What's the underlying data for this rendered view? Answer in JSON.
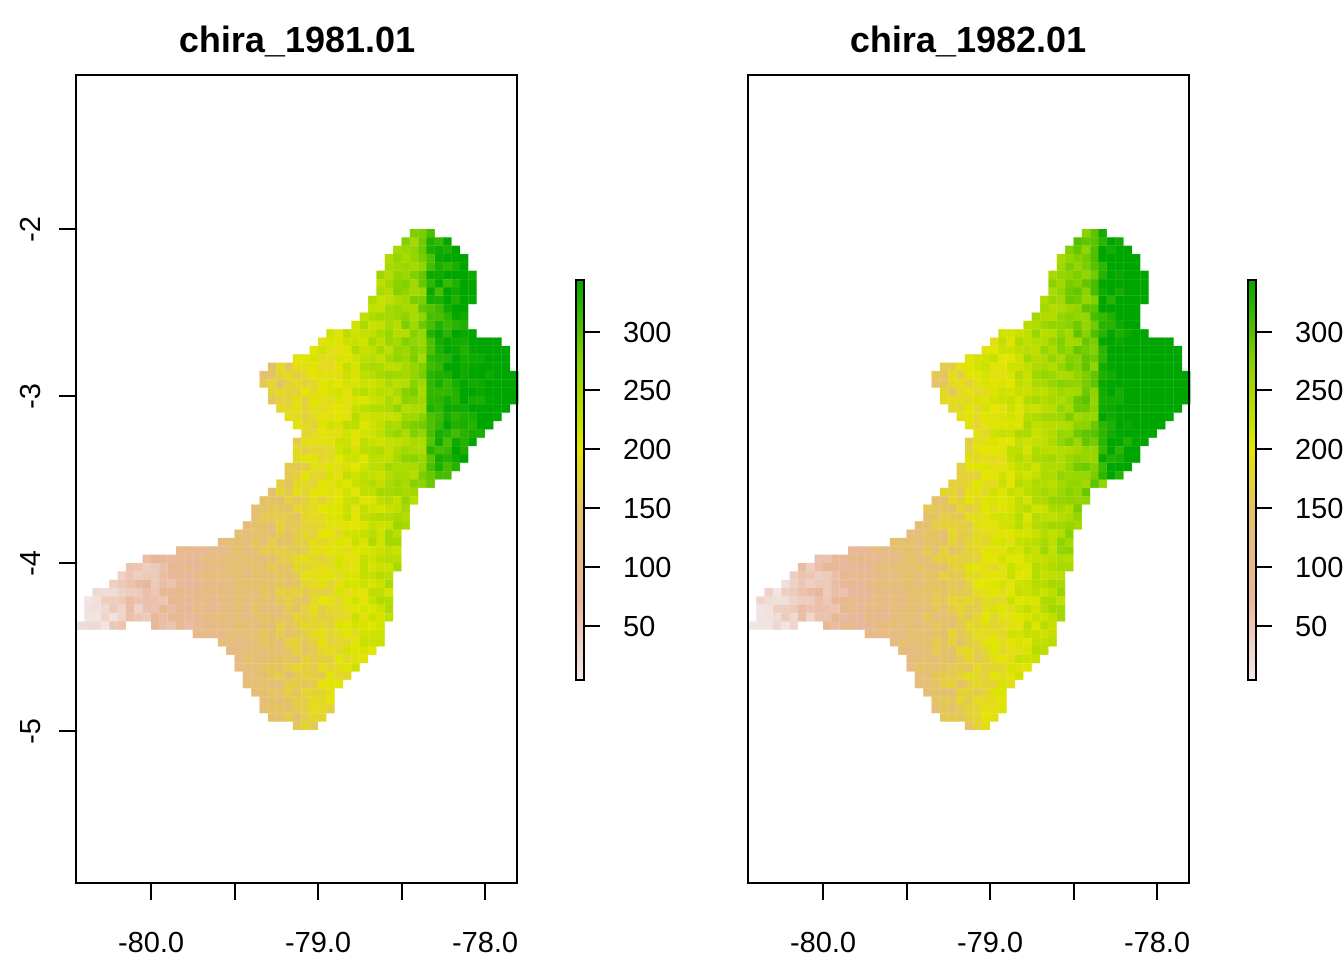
{
  "panels": [
    {
      "title": "chira_1981.01",
      "wet_offset": 0,
      "x_ticks": [
        "-80.0",
        "-79.0",
        "-78.0"
      ],
      "y_ticks": [
        "-2",
        "-3",
        "-4",
        "-5"
      ],
      "legend_ticks": [
        "50",
        "100",
        "150",
        "200",
        "250",
        "300"
      ]
    },
    {
      "title": "chira_1982.01",
      "wet_offset": 25,
      "x_ticks": [
        "-80.0",
        "-79.0",
        "-78.0"
      ],
      "y_ticks": [],
      "legend_ticks": [
        "50",
        "100",
        "150",
        "200",
        "250",
        "300"
      ]
    }
  ],
  "raster": {
    "lon_range": [
      -80.45,
      -77.8
    ],
    "lat_range": [
      -5.9,
      -1.1
    ],
    "value_range": [
      0,
      340
    ],
    "colors": {
      "low": "#f2e8e8",
      "mid_low": "#e9b79c",
      "mid": "#e4c16a",
      "mid_high": "#e3e600",
      "high_low": "#8fd400",
      "high": "#00a600",
      "outline": "#000000",
      "background": "#ffffff"
    }
  }
}
